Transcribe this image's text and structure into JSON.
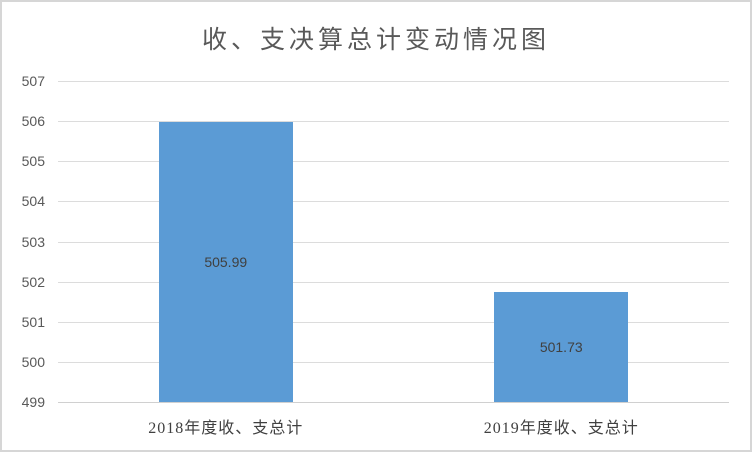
{
  "window": {
    "background_color": "#ffffff",
    "border_color": "#d6d6d6"
  },
  "chart_data": {
    "type": "bar",
    "title": "收、支决算总计变动情况图",
    "categories": [
      "2018年度收、支总计",
      "2019年度收、支总计"
    ],
    "values": [
      505.99,
      501.73
    ],
    "data_labels": [
      "505.99",
      "501.73"
    ],
    "yticks": [
      "507",
      "506",
      "505",
      "504",
      "503",
      "502",
      "501",
      "500",
      "499"
    ],
    "ylim": [
      499,
      507
    ],
    "xlabel": "",
    "ylabel": "",
    "grid": true,
    "legend_position": "none",
    "bar_color": "#5b9bd5",
    "gridline_color": "#dcdcdc",
    "axis_line_color": "#d0d0d0",
    "tick_label_color": "#595959",
    "data_label_color": "#404040",
    "category_label_color": "#404040",
    "title_color": "#595959"
  }
}
